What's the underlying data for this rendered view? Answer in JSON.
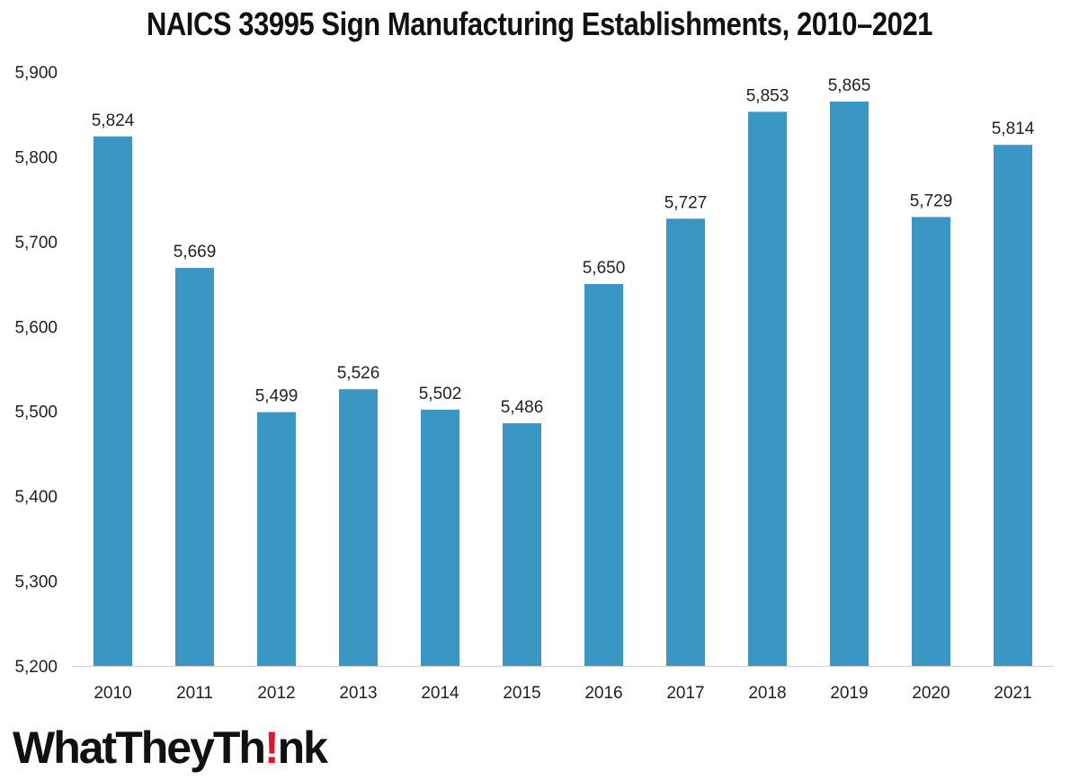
{
  "chart_data": {
    "type": "bar",
    "title": "NAICS 33995 Sign Manufacturing Establishments, 2010–2021",
    "categories": [
      "2010",
      "2011",
      "2012",
      "2013",
      "2014",
      "2015",
      "2016",
      "2017",
      "2018",
      "2019",
      "2020",
      "2021"
    ],
    "values": [
      5824,
      5669,
      5499,
      5526,
      5502,
      5486,
      5650,
      5727,
      5853,
      5865,
      5729,
      5814
    ],
    "value_labels": [
      "5,824",
      "5,669",
      "5,499",
      "5,526",
      "5,502",
      "5,486",
      "5,650",
      "5,727",
      "5,853",
      "5,865",
      "5,729",
      "5,814"
    ],
    "ylim": [
      5200,
      5900
    ],
    "yticks": [
      5200,
      5300,
      5400,
      5500,
      5600,
      5700,
      5800,
      5900
    ],
    "ytick_labels": [
      "5,200",
      "5,300",
      "5,400",
      "5,500",
      "5,600",
      "5,700",
      "5,800",
      "5,900"
    ],
    "xlabel": "",
    "ylabel": "",
    "grid": false,
    "legend": "none",
    "bar_color": "#3a97c4"
  },
  "logo": {
    "text_before": "WhatTheyTh",
    "bang": "!",
    "text_after": "nk",
    "accent_color": "#e0162b"
  }
}
